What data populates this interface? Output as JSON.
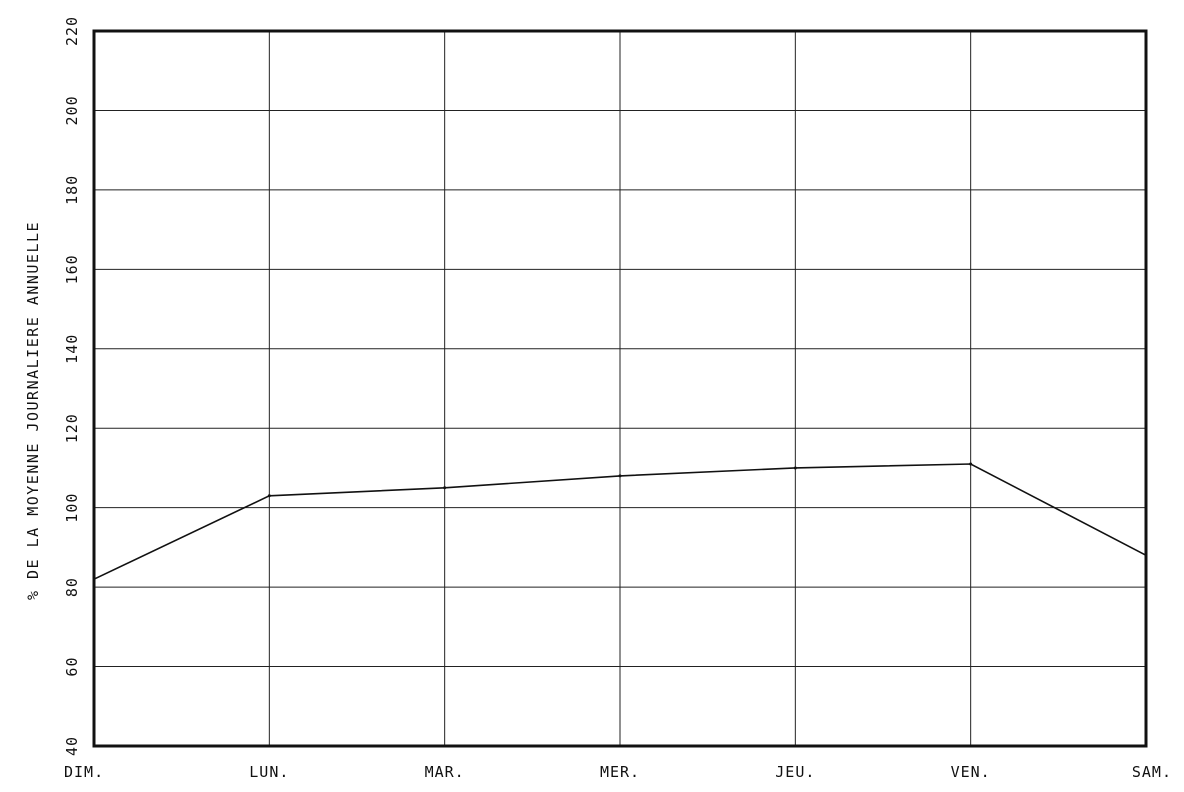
{
  "chart_data": {
    "type": "line",
    "title": "",
    "xlabel": "",
    "ylabel": "% DE LA MOYENNE JOURNALIERE ANNUELLE",
    "categories": [
      "DIM.",
      "LUN.",
      "MAR.",
      "MER.",
      "JEU.",
      "VEN.",
      "SAM."
    ],
    "y_ticks": [
      "40",
      "60",
      "80",
      "100",
      "120",
      "140",
      "160",
      "180",
      "200",
      "220"
    ],
    "ylim": [
      40,
      220
    ],
    "grid": true,
    "legend": "none",
    "series": [
      {
        "values": [
          82,
          103,
          105,
          108,
          110,
          111,
          88
        ]
      }
    ],
    "colors": {
      "line": "#111111",
      "grid": "#222222",
      "background": "#ffffff"
    }
  }
}
